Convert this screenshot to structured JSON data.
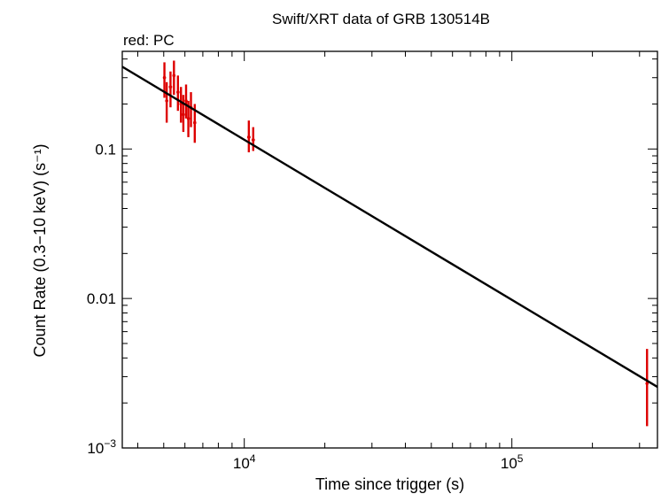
{
  "chart_data": {
    "type": "scatter",
    "title": "Swift/XRT data of GRB 130514B",
    "subtitle": "red: PC",
    "xlabel": "Time since trigger (s)",
    "ylabel": "Count Rate (0.3−10 keV) (s⁻¹)",
    "x_scale": "log",
    "y_scale": "log",
    "xlim": [
      3500,
      350000
    ],
    "ylim": [
      0.001,
      0.45
    ],
    "grid": false,
    "x_major_ticks": [
      {
        "value": 10000,
        "base": "10",
        "exp": "4"
      },
      {
        "value": 100000,
        "base": "10",
        "exp": "5"
      }
    ],
    "y_major_ticks": [
      {
        "value": 0.1,
        "label": "0.1"
      },
      {
        "value": 0.01,
        "label": "0.01"
      },
      {
        "value": 0.001,
        "base": "10",
        "exp": "−3"
      }
    ],
    "series": [
      {
        "color": "#dd0000",
        "marker": "point-with-errorbars",
        "points": [
          {
            "x": 5030,
            "y": 0.3,
            "xerr": [
              60,
              60
            ],
            "ylo": 0.22,
            "yhi": 0.38
          },
          {
            "x": 5130,
            "y": 0.21,
            "xerr": [
              50,
              50
            ],
            "ylo": 0.15,
            "yhi": 0.28
          },
          {
            "x": 5300,
            "y": 0.26,
            "xerr": [
              70,
              70
            ],
            "ylo": 0.19,
            "yhi": 0.33
          },
          {
            "x": 5460,
            "y": 0.31,
            "xerr": [
              60,
              60
            ],
            "ylo": 0.23,
            "yhi": 0.39
          },
          {
            "x": 5650,
            "y": 0.24,
            "xerr": [
              60,
              60
            ],
            "ylo": 0.18,
            "yhi": 0.31
          },
          {
            "x": 5800,
            "y": 0.2,
            "xerr": [
              50,
              50
            ],
            "ylo": 0.15,
            "yhi": 0.26
          },
          {
            "x": 5920,
            "y": 0.17,
            "xerr": [
              50,
              50
            ],
            "ylo": 0.13,
            "yhi": 0.23
          },
          {
            "x": 6060,
            "y": 0.21,
            "xerr": [
              50,
              50
            ],
            "ylo": 0.16,
            "yhi": 0.27
          },
          {
            "x": 6180,
            "y": 0.16,
            "xerr": [
              50,
              50
            ],
            "ylo": 0.12,
            "yhi": 0.21
          },
          {
            "x": 6320,
            "y": 0.19,
            "xerr": [
              60,
              60
            ],
            "ylo": 0.14,
            "yhi": 0.24
          },
          {
            "x": 6530,
            "y": 0.15,
            "xerr": [
              80,
              80
            ],
            "ylo": 0.11,
            "yhi": 0.2
          },
          {
            "x": 10400,
            "y": 0.12,
            "xerr": [
              150,
              150
            ],
            "ylo": 0.095,
            "yhi": 0.155
          },
          {
            "x": 10800,
            "y": 0.115,
            "xerr": [
              150,
              150
            ],
            "ylo": 0.097,
            "yhi": 0.14
          },
          {
            "x": 320000,
            "y": 0.0027,
            "xerr": [
              3000,
              3000
            ],
            "ylo": 0.0014,
            "yhi": 0.0046
          }
        ]
      },
      {
        "color": "#000000",
        "marker": "line",
        "model": "power-law fit",
        "x": [
          3500,
          350000
        ],
        "y": [
          0.355,
          0.00256
        ]
      }
    ]
  }
}
